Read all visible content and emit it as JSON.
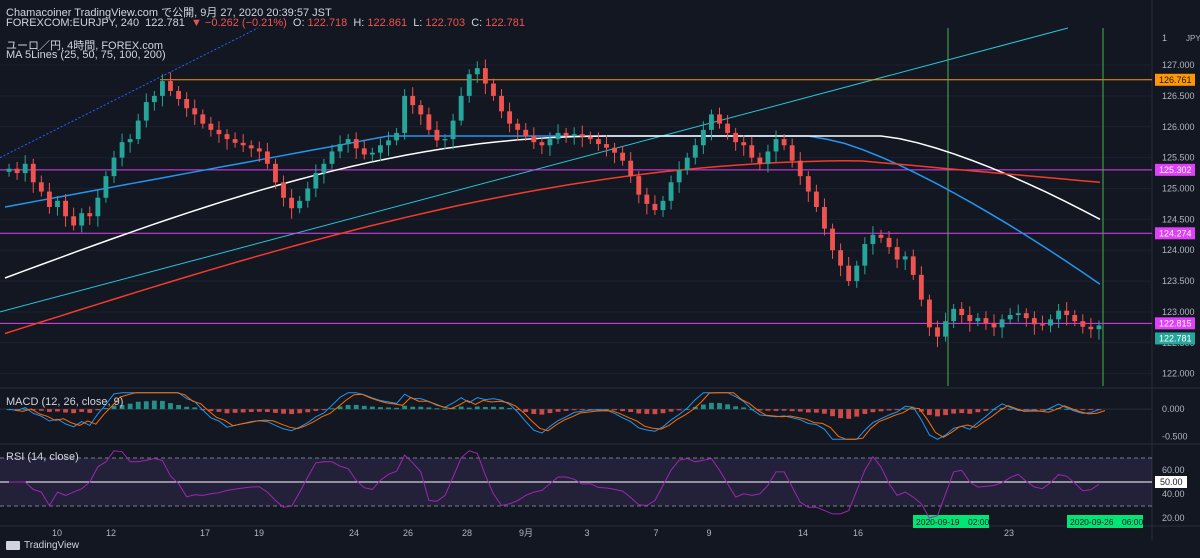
{
  "header": {
    "line1": "Chamacoiner TradingView.com で公開, 9月 27, 2020 20:39:57 JST",
    "symbol": "FOREXCOM:EURJPY, 240",
    "last": "122.781",
    "change": "▼ −0.262 (−0.21%)",
    "o_label": "O:",
    "o": "122.718",
    "h_label": "H:",
    "h": "122.861",
    "l_label": "L:",
    "l": "122.703",
    "c_label": "C:",
    "c": "122.781",
    "pair_line": "ユーロ／円, 4時間, FOREX.com",
    "ma_line": "MA 5Lines (25, 50, 75, 100, 200)",
    "macd_label": "MACD (12, 26, close, 9)",
    "rsi_label": "RSI (14, close)"
  },
  "brand": "TradingView",
  "colors": {
    "background": "#131722",
    "up": "#26a69a",
    "down": "#ef5350",
    "ma_white": "#ffffff",
    "ma_blue": "#2196f3",
    "ma_red": "#f23c2a",
    "magenta": "#e040fb",
    "orange": "#ff9800",
    "channel": "#26c6da",
    "green_marker": "#4caf50",
    "rsi": "#9c27b0"
  },
  "chart_data": [
    {
      "type": "candlestick",
      "currency": "JPY",
      "price_axis": {
        "range": [
          121.8,
          127.6
        ],
        "ticks": [
          "122.000",
          "122.500",
          "123.000",
          "123.500",
          "124.000",
          "124.500",
          "125.000",
          "125.500",
          "126.000",
          "126.500",
          "127.000"
        ],
        "top_tick": "1"
      },
      "x_ticks": [
        "10",
        "12",
        "17",
        "19",
        "24",
        "26",
        "28",
        "9月",
        "3",
        "7",
        "9",
        "14",
        "16",
        "23"
      ],
      "hlines": [
        {
          "value": 126.761,
          "label": "126.761",
          "color": "orange"
        },
        {
          "value": 125.302,
          "label": "125.302",
          "color": "magenta"
        },
        {
          "value": 124.274,
          "label": "124.274",
          "color": "magenta"
        },
        {
          "value": 122.815,
          "label": "122.815",
          "color": "magenta"
        }
      ],
      "last_price": {
        "value": 122.781,
        "label": "122.781"
      },
      "vertical_markers": [
        {
          "label": "2020-09-19　02:00"
        },
        {
          "label": "2020-09-26　06:00"
        }
      ],
      "closes": [
        125.32,
        125.25,
        125.4,
        125.1,
        124.95,
        124.7,
        124.8,
        124.55,
        124.4,
        124.6,
        124.55,
        124.85,
        125.2,
        125.5,
        125.75,
        125.8,
        126.1,
        126.4,
        126.5,
        126.74,
        126.58,
        126.45,
        126.3,
        126.2,
        126.05,
        125.95,
        125.88,
        125.8,
        125.74,
        125.7,
        125.65,
        125.6,
        125.4,
        125.1,
        124.85,
        124.68,
        124.8,
        125.0,
        125.25,
        125.4,
        125.6,
        125.72,
        125.8,
        125.65,
        125.55,
        125.58,
        125.7,
        125.78,
        125.9,
        126.5,
        126.35,
        126.2,
        125.95,
        125.78,
        125.8,
        126.1,
        126.5,
        126.85,
        126.95,
        126.7,
        126.5,
        126.25,
        126.05,
        125.95,
        125.85,
        125.75,
        125.7,
        125.8,
        125.9,
        125.85,
        125.88,
        125.84,
        125.8,
        125.72,
        125.66,
        125.58,
        125.45,
        125.2,
        124.9,
        124.75,
        124.65,
        124.8,
        125.1,
        125.3,
        125.5,
        125.7,
        125.95,
        126.2,
        126.05,
        125.9,
        125.75,
        125.7,
        125.5,
        125.4,
        125.6,
        125.8,
        125.7,
        125.45,
        125.2,
        124.95,
        124.7,
        124.35,
        124.0,
        123.75,
        123.5,
        123.75,
        124.1,
        124.25,
        124.2,
        124.05,
        123.85,
        123.9,
        123.6,
        123.2,
        122.75,
        122.6,
        122.85,
        123.05,
        122.95,
        122.85,
        122.9,
        122.82,
        122.75,
        122.88,
        122.95,
        122.98,
        122.9,
        122.8,
        122.78,
        122.88,
        123.02,
        122.95,
        122.85,
        122.76,
        122.72,
        122.781
      ],
      "ma_lines": [
        {
          "color": "ma_blue",
          "from": 124.7,
          "to": 123.45
        },
        {
          "color": "ma_white",
          "from": 123.55,
          "to": 124.5
        },
        {
          "color": "ma_red",
          "from": 122.65,
          "to": 125.1
        }
      ]
    },
    {
      "type": "macd",
      "label": "MACD (12, 26, close, 9)",
      "ticks": [
        "0.000",
        "-0.500"
      ],
      "range": [
        -0.6,
        0.35
      ]
    },
    {
      "type": "rsi",
      "label": "RSI (14, close)",
      "ticks": [
        "60.00",
        "50.00",
        "40.00",
        "20.00"
      ],
      "band": [
        30,
        70
      ],
      "current": 50,
      "range": [
        15,
        80
      ]
    }
  ]
}
